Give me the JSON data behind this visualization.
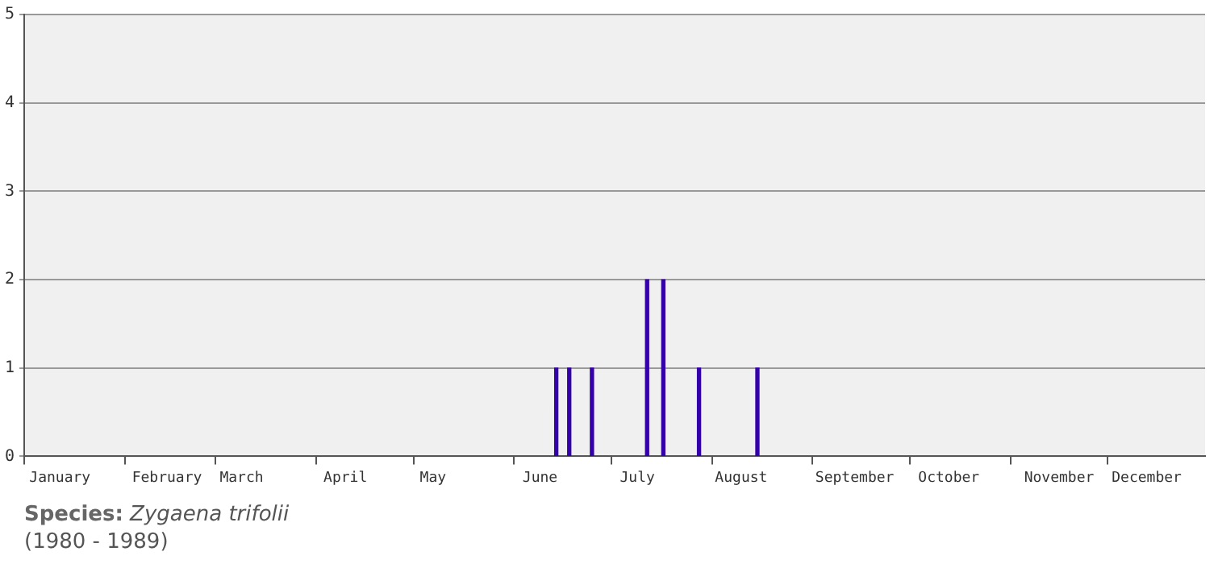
{
  "chart_data": {
    "type": "bar",
    "title": "Species:",
    "subtitle": "Zygaena trifolii",
    "annotations": [
      "(1980 - 1989)"
    ],
    "x": [
      "--06-14",
      "--06-18",
      "--06-25",
      "--07-12",
      "--07-17",
      "--07-28",
      "--08-15"
    ],
    "values": [
      1,
      1,
      1,
      2,
      2,
      1,
      1
    ],
    "color": "#3300aa",
    "xlim": [
      "--01-01",
      "--12-31"
    ],
    "xticks": [
      {
        "value": "--01-01",
        "label": null
      },
      {
        "value": "--01-12",
        "label": "January"
      },
      {
        "value": "--02-01",
        "label": null
      },
      {
        "value": "--02-14",
        "label": "February"
      },
      {
        "value": "--03-01",
        "label": null
      },
      {
        "value": "--03-09",
        "label": "March"
      },
      {
        "value": "--04-01",
        "label": null
      },
      {
        "value": "--04-10",
        "label": "April"
      },
      {
        "value": "--05-01",
        "label": null
      },
      {
        "value": "--05-07",
        "label": "May"
      },
      {
        "value": "--06-01",
        "label": null
      },
      {
        "value": "--06-09",
        "label": "June"
      },
      {
        "value": "--07-01",
        "label": null
      },
      {
        "value": "--07-09",
        "label": "July"
      },
      {
        "value": "--08-01",
        "label": null
      },
      {
        "value": "--08-10",
        "label": "August"
      },
      {
        "value": "--09-01",
        "label": null
      },
      {
        "value": "--09-14",
        "label": "September"
      },
      {
        "value": "--10-01",
        "label": null
      },
      {
        "value": "--10-13",
        "label": "October"
      },
      {
        "value": "--11-01",
        "label": null
      },
      {
        "value": "--11-16",
        "label": "November"
      },
      {
        "value": "--12-01",
        "label": null
      },
      {
        "value": "--12-13",
        "label": "December"
      }
    ],
    "ylim": [
      0,
      5
    ],
    "yticks": [
      0,
      1,
      2,
      3,
      4,
      5
    ],
    "grid": "y"
  }
}
